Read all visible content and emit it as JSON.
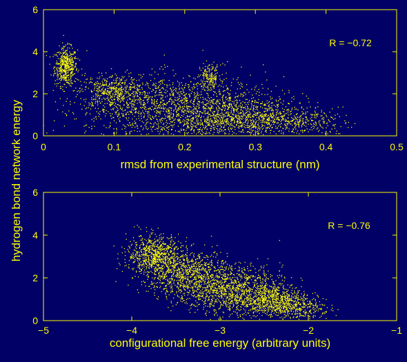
{
  "figure": {
    "shared_ylabel": "hydrogen bond network energy",
    "background": "#000066",
    "foreground": "#ffff00",
    "point_color": "#ffff00"
  },
  "chart_data": [
    {
      "type": "scatter",
      "title": "",
      "xlabel": "rmsd from experimental structure (nm)",
      "ylabel": "hydrogen bond network energy",
      "xlim": [
        0,
        0.5
      ],
      "ylim": [
        0,
        6
      ],
      "xticks": [
        0,
        0.1,
        0.2,
        0.3,
        0.4,
        0.5
      ],
      "xtick_labels": [
        "0",
        "0.1",
        "0.2",
        "0.3",
        "0.4",
        "0.5"
      ],
      "yticks": [
        0,
        2,
        4,
        6
      ],
      "ytick_labels": [
        "0",
        "2",
        "4",
        "6"
      ],
      "annotation": "R = −0.72",
      "correlation": -0.72,
      "grid": false,
      "legend": "none",
      "clusters": [
        {
          "x_center": 0.032,
          "y_center": 3.3,
          "x_spread": 0.008,
          "y_spread": 0.45,
          "count": 500
        },
        {
          "x_center": 0.1,
          "y_center": 2.1,
          "x_spread": 0.025,
          "y_spread": 0.4,
          "count": 500
        },
        {
          "x_center": 0.2,
          "y_center": 1.2,
          "x_spread": 0.07,
          "y_spread": 0.8,
          "count": 1900
        },
        {
          "x_center": 0.235,
          "y_center": 2.8,
          "x_spread": 0.008,
          "y_spread": 0.3,
          "count": 180
        },
        {
          "x_center": 0.3,
          "y_center": 0.75,
          "x_spread": 0.05,
          "y_spread": 0.45,
          "count": 800
        },
        {
          "x_center": 0.37,
          "y_center": 0.65,
          "x_spread": 0.03,
          "y_spread": 0.25,
          "count": 120
        }
      ]
    },
    {
      "type": "scatter",
      "title": "",
      "xlabel": "configurational free energy (arbitrary units)",
      "ylabel": "hydrogen bond network energy",
      "xlim": [
        -5,
        -1
      ],
      "ylim": [
        0,
        6
      ],
      "xticks": [
        -5,
        -4,
        -3,
        -2,
        -1
      ],
      "xtick_labels": [
        "−5",
        "−4",
        "−3",
        "−2",
        "−1"
      ],
      "yticks": [
        0,
        2,
        4,
        6
      ],
      "ytick_labels": [
        "0",
        "2",
        "4",
        "6"
      ],
      "annotation": "R = −0.76",
      "correlation": -0.76,
      "grid": false,
      "legend": "none",
      "clusters": [
        {
          "x_center": -3.75,
          "y_center": 3.1,
          "x_spread": 0.15,
          "y_spread": 0.45,
          "count": 700
        },
        {
          "x_center": -3.4,
          "y_center": 2.3,
          "x_spread": 0.25,
          "y_spread": 0.5,
          "count": 900
        },
        {
          "x_center": -2.9,
          "y_center": 1.4,
          "x_spread": 0.3,
          "y_spread": 0.55,
          "count": 1200
        },
        {
          "x_center": -2.4,
          "y_center": 0.9,
          "x_spread": 0.2,
          "y_spread": 0.4,
          "count": 800
        },
        {
          "x_center": -2.05,
          "y_center": 0.6,
          "x_spread": 0.15,
          "y_spread": 0.3,
          "count": 200
        }
      ]
    }
  ]
}
